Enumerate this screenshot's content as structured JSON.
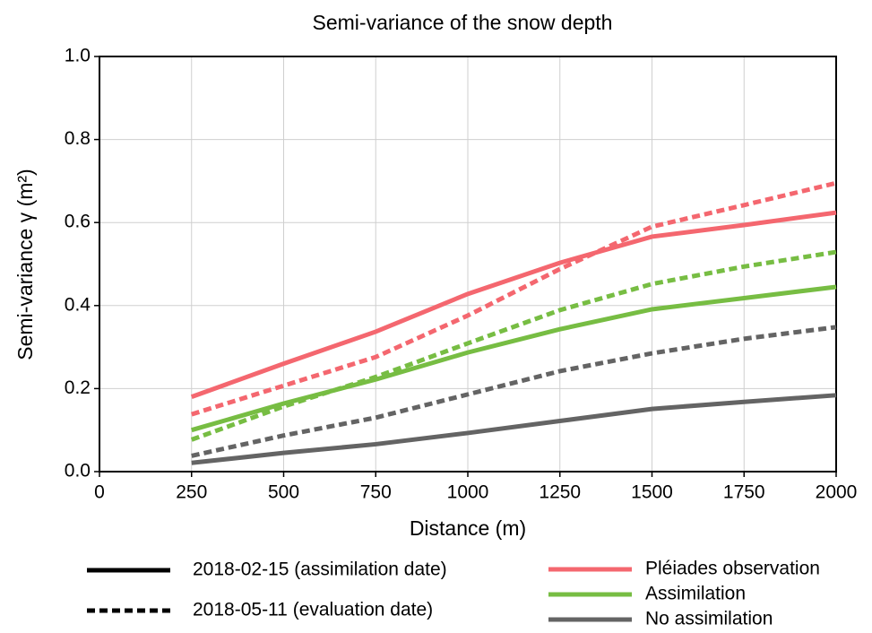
{
  "chart_data": {
    "type": "line",
    "title": "Semi-variance of the snow depth",
    "x_label": "Distance (m)",
    "y_label": "Semi-variance γ (m²)",
    "x": [
      250,
      500,
      750,
      1000,
      1250,
      1500,
      1750,
      2000
    ],
    "line_styles": [
      {
        "label": "2018-02-15 (assimilation date)",
        "dash": "solid"
      },
      {
        "label": "2018-05-11 (evaluation date)",
        "dash": "dashed"
      }
    ],
    "series": [
      {
        "name": "Pléiades observation",
        "color": "#f4676f",
        "values": [
          [
            0.18,
            0.26,
            0.337,
            0.428,
            0.503,
            0.566,
            0.594,
            0.624
          ],
          [
            0.138,
            0.207,
            0.276,
            0.376,
            0.488,
            0.59,
            0.642,
            0.695
          ]
        ]
      },
      {
        "name": "Assimilation",
        "color": "#77bd43",
        "values": [
          [
            0.1,
            0.164,
            0.222,
            0.287,
            0.343,
            0.391,
            0.418,
            0.445
          ],
          [
            0.077,
            0.157,
            0.228,
            0.309,
            0.389,
            0.452,
            0.494,
            0.529
          ]
        ]
      },
      {
        "name": "No assimilation",
        "color": "#646464",
        "values": [
          [
            0.021,
            0.045,
            0.066,
            0.093,
            0.122,
            0.151,
            0.168,
            0.184
          ],
          [
            0.038,
            0.087,
            0.13,
            0.186,
            0.242,
            0.285,
            0.32,
            0.348
          ]
        ]
      }
    ],
    "xlim": [
      0,
      2000
    ],
    "xticks": [
      0,
      250,
      500,
      750,
      1000,
      1250,
      1500,
      1750,
      2000
    ],
    "ylim": [
      0,
      1
    ],
    "yticks": [
      {
        "value": 0,
        "label": "0.0"
      },
      0.2,
      0.4,
      0.6,
      0.8,
      {
        "value": 1,
        "label": "1.0"
      }
    ],
    "grid": true
  }
}
